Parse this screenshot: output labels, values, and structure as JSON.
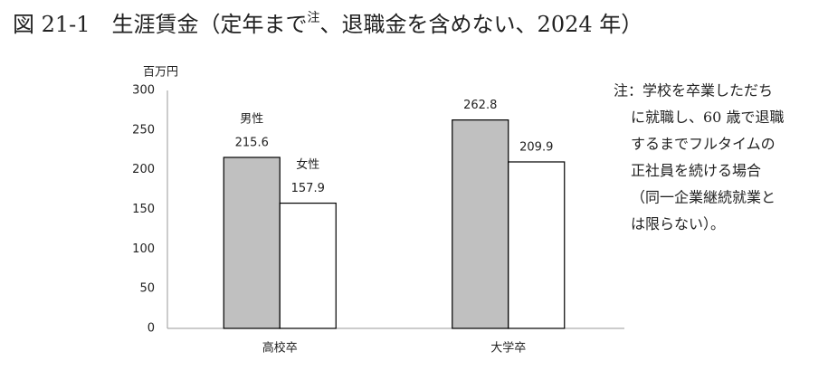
{
  "chart_data": {
    "type": "bar",
    "title": "図 21-1　生涯賃金（定年まで",
    "title_superscript": "注",
    "title_end": "、退職金を含めない、2024 年）",
    "y_unit": "百万円",
    "categories": [
      "高校卒",
      "大学卒"
    ],
    "series": [
      {
        "name": "男性",
        "color": "#c0c0c0",
        "values": [
          215.6,
          262.8
        ]
      },
      {
        "name": "女性",
        "color": "#ffffff",
        "values": [
          157.9,
          209.9
        ]
      }
    ],
    "ylim": [
      0,
      300
    ],
    "yticks": [
      0,
      50,
      100,
      150,
      200,
      250,
      300
    ],
    "grid": false,
    "note": [
      "注：学校を卒業しただち",
      "に就職し、60 歳で退職",
      "するまでフルタイムの",
      "正社員を続ける場合",
      "（同一企業継続就業と",
      "は限らない）。"
    ]
  }
}
